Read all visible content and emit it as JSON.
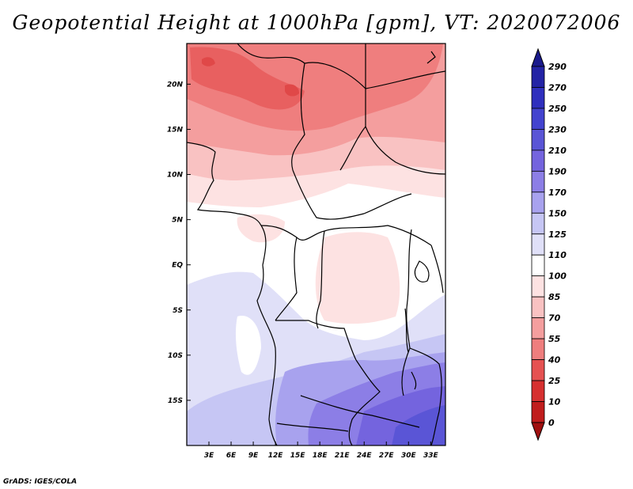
{
  "title": "Geopotential Height at 1000hPa [gpm], VT: 2020072006",
  "credit": "GrADS: IGES/COLA",
  "map": {
    "lon_range": [
      0,
      35
    ],
    "lat_range": [
      -20,
      24.5
    ],
    "lon_ticks": [
      "3E",
      "6E",
      "9E",
      "12E",
      "15E",
      "18E",
      "21E",
      "24E",
      "27E",
      "30E",
      "33E"
    ],
    "lat_ticks": [
      "20N",
      "15N",
      "10N",
      "5N",
      "EQ",
      "5S",
      "10S",
      "15S"
    ]
  },
  "colorbar": {
    "levels": [
      "290",
      "270",
      "250",
      "230",
      "210",
      "190",
      "170",
      "150",
      "125",
      "110",
      "100",
      "85",
      "70",
      "55",
      "40",
      "25",
      "10",
      "0"
    ],
    "colors": [
      "#1a1a8c",
      "#2323a5",
      "#2f2fbe",
      "#4343cf",
      "#5a55d6",
      "#7464de",
      "#8c7ee6",
      "#a8a2ee",
      "#c6c6f4",
      "#e0e0f8",
      "#ffffff",
      "#fde2e2",
      "#f9c2c2",
      "#f49e9e",
      "#ef7e7e",
      "#e55252",
      "#d63030",
      "#c01d1d",
      "#a01010"
    ]
  }
}
